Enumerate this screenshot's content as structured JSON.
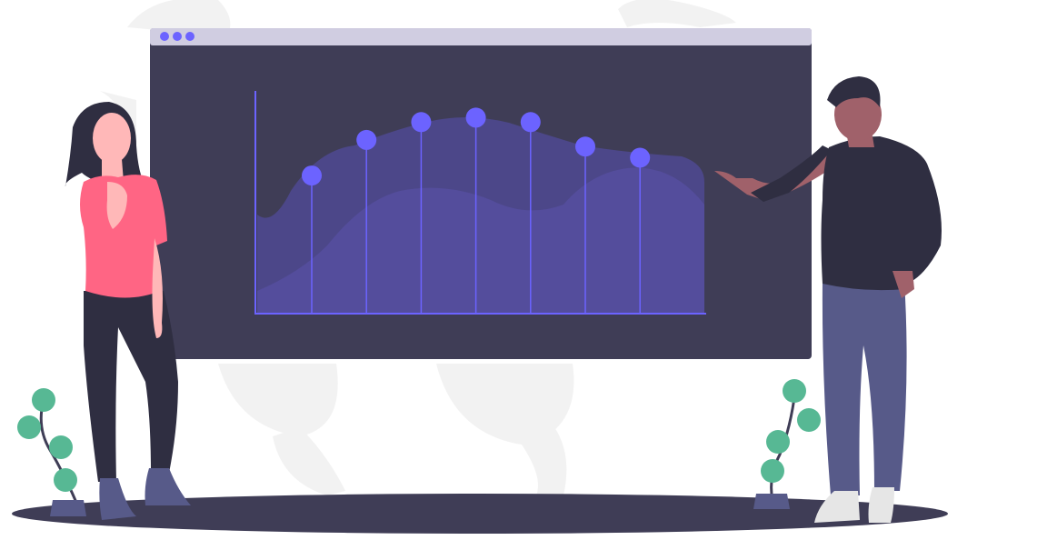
{
  "colors": {
    "background": "#ffffff",
    "bg_leaves": "#f2f2f2",
    "window_frame": "#3f3d56",
    "window_titlebar": "#d0cde1",
    "accent": "#6c63ff",
    "area_back": "#4c4789",
    "area_front": "#544d9c",
    "ground": "#3f3d56",
    "woman_shirt": "#ff6584",
    "woman_pants": "#2f2e41",
    "skin_light": "#ffb8b8",
    "skin_dark": "#a0616a",
    "hair": "#2f2e41",
    "man_shirt": "#2f2e41",
    "man_pants": "#575a89",
    "shoe_woman": "#575a89",
    "shoe_man": "#e6e6e6",
    "plant_leaf": "#57b894",
    "plant_stem": "#3f3d56",
    "pot": "#575a89"
  },
  "chart_data": {
    "type": "scatter",
    "style": "lollipop",
    "x": [
      1,
      2,
      3,
      4,
      5,
      6,
      7
    ],
    "values": [
      0.62,
      0.78,
      0.86,
      0.88,
      0.86,
      0.75,
      0.7
    ],
    "ylim": [
      0,
      1
    ],
    "background_areas": 2,
    "grid": false
  },
  "icons": {
    "window_controls": "three-dot-window-controls"
  }
}
